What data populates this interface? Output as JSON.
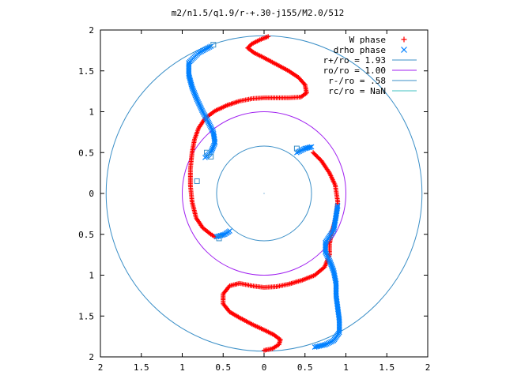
{
  "chart_data": {
    "type": "scatter",
    "title": "m2/n1.5/q1.9/r-+.30-j155/M2.0/512",
    "xlabel": "",
    "ylabel": "",
    "xlim": [
      -2,
      2
    ],
    "ylim": [
      -2,
      2
    ],
    "grid": false,
    "legend_position": "top-right",
    "x_ticks": [
      -2,
      -1.5,
      -1,
      -0.5,
      0,
      0.5,
      1,
      1.5,
      2
    ],
    "x_tick_labels": [
      "2",
      "1.5",
      "1",
      "0.5",
      "0",
      "0.5",
      "1",
      "1.5",
      "2"
    ],
    "y_ticks": [
      2,
      1.5,
      1,
      0.5,
      0,
      -0.5,
      -1,
      -1.5,
      -2
    ],
    "y_tick_labels": [
      "2",
      "1.5",
      "1",
      "0.5",
      "0",
      "0.5",
      "1",
      "1.5",
      "2"
    ],
    "series": [
      {
        "name": "W phase",
        "kind": "points",
        "marker": "plus",
        "color": "#ff0000",
        "points": [
          [
            0.05,
            1.92
          ],
          [
            -0.05,
            1.88
          ],
          [
            -0.15,
            1.83
          ],
          [
            -0.2,
            1.78
          ],
          [
            -0.12,
            1.72
          ],
          [
            0.0,
            1.66
          ],
          [
            0.15,
            1.58
          ],
          [
            0.3,
            1.5
          ],
          [
            0.42,
            1.42
          ],
          [
            0.5,
            1.33
          ],
          [
            0.52,
            1.23
          ],
          [
            0.45,
            1.18
          ],
          [
            0.3,
            1.17
          ],
          [
            0.15,
            1.17
          ],
          [
            0.0,
            1.17
          ],
          [
            -0.15,
            1.16
          ],
          [
            -0.3,
            1.13
          ],
          [
            -0.45,
            1.08
          ],
          [
            -0.6,
            1.01
          ],
          [
            -0.72,
            0.92
          ],
          [
            -0.8,
            0.8
          ],
          [
            -0.85,
            0.66
          ],
          [
            -0.88,
            0.5
          ],
          [
            -0.9,
            0.3
          ],
          [
            -0.9,
            0.1
          ],
          [
            -0.88,
            -0.1
          ],
          [
            -0.83,
            -0.3
          ],
          [
            -0.75,
            -0.42
          ],
          [
            -0.65,
            -0.5
          ],
          [
            -0.6,
            -0.53
          ],
          [
            0.6,
            0.5
          ],
          [
            0.7,
            0.4
          ],
          [
            0.8,
            0.25
          ],
          [
            0.87,
            0.1
          ],
          [
            0.9,
            -0.1
          ],
          [
            0.88,
            -0.3
          ],
          [
            0.82,
            -0.5
          ],
          [
            0.8,
            -0.62
          ],
          [
            0.8,
            -0.75
          ],
          [
            0.74,
            -0.9
          ],
          [
            0.62,
            -1.0
          ],
          [
            0.47,
            -1.06
          ],
          [
            0.3,
            -1.11
          ],
          [
            0.15,
            -1.14
          ],
          [
            0.0,
            -1.15
          ],
          [
            -0.15,
            -1.13
          ],
          [
            -0.3,
            -1.1
          ],
          [
            -0.42,
            -1.13
          ],
          [
            -0.5,
            -1.23
          ],
          [
            -0.5,
            -1.35
          ],
          [
            -0.42,
            -1.45
          ],
          [
            -0.3,
            -1.52
          ],
          [
            -0.15,
            -1.6
          ],
          [
            0.0,
            -1.67
          ],
          [
            0.12,
            -1.73
          ],
          [
            0.2,
            -1.79
          ],
          [
            0.18,
            -1.85
          ],
          [
            0.1,
            -1.9
          ],
          [
            0.0,
            -1.92
          ]
        ]
      },
      {
        "name": "drho phase",
        "kind": "points",
        "marker": "cross",
        "color": "#0080ff",
        "points": [
          [
            -0.65,
            1.8
          ],
          [
            -0.8,
            1.72
          ],
          [
            -0.92,
            1.6
          ],
          [
            -0.92,
            1.45
          ],
          [
            -0.88,
            1.3
          ],
          [
            -0.82,
            1.15
          ],
          [
            -0.75,
            1.0
          ],
          [
            -0.68,
            0.87
          ],
          [
            -0.62,
            0.75
          ],
          [
            -0.6,
            0.62
          ],
          [
            -0.65,
            0.5
          ],
          [
            -0.72,
            0.44
          ],
          [
            0.4,
            0.5
          ],
          [
            0.5,
            0.55
          ],
          [
            0.58,
            0.57
          ],
          [
            0.9,
            -0.15
          ],
          [
            0.85,
            -0.45
          ],
          [
            0.75,
            -0.6
          ],
          [
            0.75,
            -0.72
          ],
          [
            0.8,
            -0.82
          ],
          [
            0.85,
            -0.95
          ],
          [
            0.88,
            -1.1
          ],
          [
            0.88,
            -1.25
          ],
          [
            0.9,
            -1.4
          ],
          [
            0.92,
            -1.55
          ],
          [
            0.92,
            -1.7
          ],
          [
            0.85,
            -1.8
          ],
          [
            0.75,
            -1.85
          ],
          [
            0.62,
            -1.88
          ],
          [
            -0.58,
            -0.53
          ],
          [
            -0.48,
            -0.5
          ],
          [
            -0.42,
            -0.46
          ]
        ]
      }
    ],
    "circles": [
      {
        "name": "r+/ro = 1.93",
        "radius": 1.93,
        "color": "#3b8fc7"
      },
      {
        "name": "ro/ro = 1.00",
        "radius": 1.0,
        "color": "#a020f0"
      },
      {
        "name": "r-/ro = .58",
        "radius": 0.58,
        "color": "#3b8fc7"
      },
      {
        "name": "rc/ro = NaN",
        "radius": null,
        "color": "#40c0c0"
      }
    ],
    "squares": [
      [
        -0.62,
        1.82
      ],
      [
        -0.65,
        0.45
      ],
      [
        -0.7,
        0.5
      ],
      [
        -0.82,
        0.15
      ],
      [
        0.4,
        0.55
      ],
      [
        -0.55,
        -0.55
      ]
    ]
  }
}
